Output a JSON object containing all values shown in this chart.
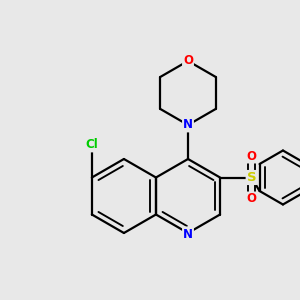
{
  "background_color": "#e8e8e8",
  "atom_colors": {
    "C": "#000000",
    "N": "#0000ff",
    "O": "#ff0000",
    "S": "#cccc00",
    "Cl": "#00cc00"
  },
  "bond_color": "#000000",
  "bond_width": 1.6,
  "figsize": [
    3.0,
    3.0
  ],
  "dpi": 100
}
